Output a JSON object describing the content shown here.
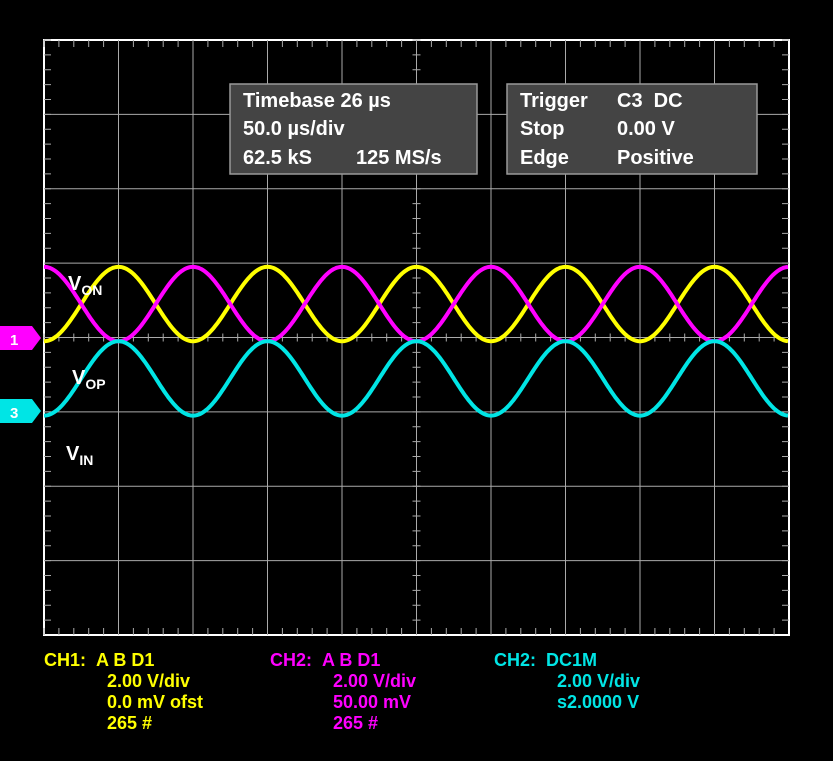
{
  "info_box_left": {
    "line1": "Timebase 26 µs",
    "line2": "50.0 µs/div",
    "line3a": "62.5 kS",
    "line3b": "125 MS/s"
  },
  "info_box_right": {
    "row1_label": "Trigger",
    "row1_value": "C3  DC",
    "row2_label": "Stop",
    "row2_value": "0.00 V",
    "row3_label": "Edge",
    "row3_value": "Positive"
  },
  "markers": [
    {
      "label": "1",
      "color": "#ff00ff"
    },
    {
      "label": "3",
      "color": "#00e5e5"
    }
  ],
  "trace_labels": {
    "von_main": "V",
    "von_sub": "ON",
    "vop_main": "V",
    "vop_sub": "OP",
    "vin_main": "V",
    "vin_sub": "IN"
  },
  "channels": [
    {
      "header": "CH1:",
      "line1": "A B D1",
      "line2": "2.00 V/div",
      "line3": "0.0 mV ofst",
      "line4": "265 #",
      "color": "#ffff00"
    },
    {
      "header": "CH2:",
      "line1": "A B D1",
      "line2": "2.00 V/div",
      "line3": "50.00 mV",
      "line4": "265 #",
      "color": "#ff00ff"
    },
    {
      "header": "CH2:",
      "line1": "DC1M",
      "line2": "2.00 V/div",
      "line3": "s2.0000 V",
      "color": "#00e5e5"
    }
  ],
  "chart_data": {
    "type": "line",
    "grid": true,
    "divisions": {
      "x": 10,
      "y": 8
    },
    "time_per_div": "50.0 µs/div",
    "series": [
      {
        "name": "VON",
        "color": "#ffff00",
        "shape": "sine",
        "periods": 5,
        "amplitude_div": 0.5,
        "offset_div": 0.45,
        "phase": "peak-at-1.0div"
      },
      {
        "name": "VOP",
        "color": "#ff00ff",
        "shape": "sine",
        "periods": 5,
        "amplitude_div": 0.5,
        "offset_div": 0.45,
        "phase": "trough-at-1.0div"
      },
      {
        "name": "VIN",
        "color": "#00e5e5",
        "shape": "sine",
        "periods": 5,
        "amplitude_div": 0.5,
        "offset_div": -0.55,
        "phase": "peak-at-0div"
      }
    ]
  }
}
